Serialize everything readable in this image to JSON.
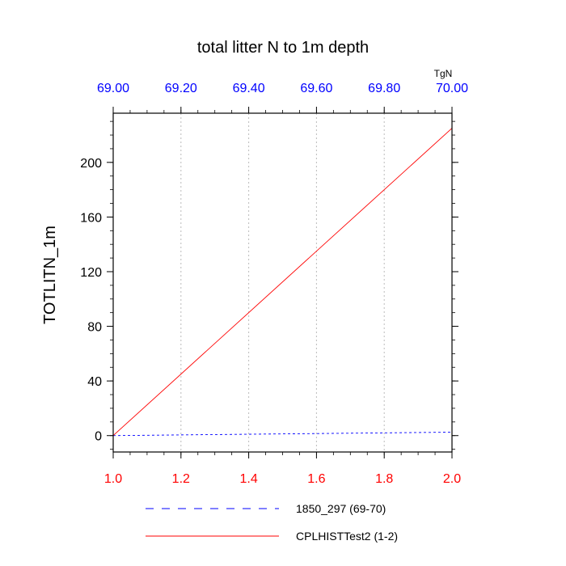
{
  "chart_data": {
    "type": "line",
    "title": "total litter N to 1m depth",
    "ylabel": "TOTLITN_1m",
    "ylim": [
      -12,
      236
    ],
    "yticks": [
      0,
      40,
      80,
      120,
      160,
      200
    ],
    "ytick_labels": [
      "0",
      "40",
      "80",
      "120",
      "160",
      "200"
    ],
    "bottom_axis": {
      "range": [
        1.0,
        2.0
      ],
      "ticks": [
        1.0,
        1.2,
        1.4,
        1.6,
        1.8,
        2.0
      ],
      "tick_labels": [
        "1.0",
        "1.2",
        "1.4",
        "1.6",
        "1.8",
        "2.0"
      ],
      "color": "#ff0000"
    },
    "top_axis": {
      "unit_label": "TgN",
      "range": [
        69.0,
        70.0
      ],
      "ticks": [
        69.0,
        69.2,
        69.4,
        69.6,
        69.8,
        70.0
      ],
      "tick_labels": [
        "69.00",
        "69.20",
        "69.40",
        "69.60",
        "69.80",
        "70.00"
      ],
      "color": "#0000ff"
    },
    "grid": "vertical dotted",
    "legend_placement": "bottom",
    "series": [
      {
        "name": "1850_297 (69-70)",
        "axis": "top",
        "style": "dashed",
        "color": "#0000ff",
        "x": [
          69.0,
          70.0
        ],
        "y": [
          0,
          2.5
        ]
      },
      {
        "name": "CPLHISTTest2 (1-2)",
        "axis": "bottom",
        "style": "solid",
        "color": "#ff0000",
        "x": [
          1.0,
          2.0
        ],
        "y": [
          0,
          225
        ]
      }
    ]
  }
}
